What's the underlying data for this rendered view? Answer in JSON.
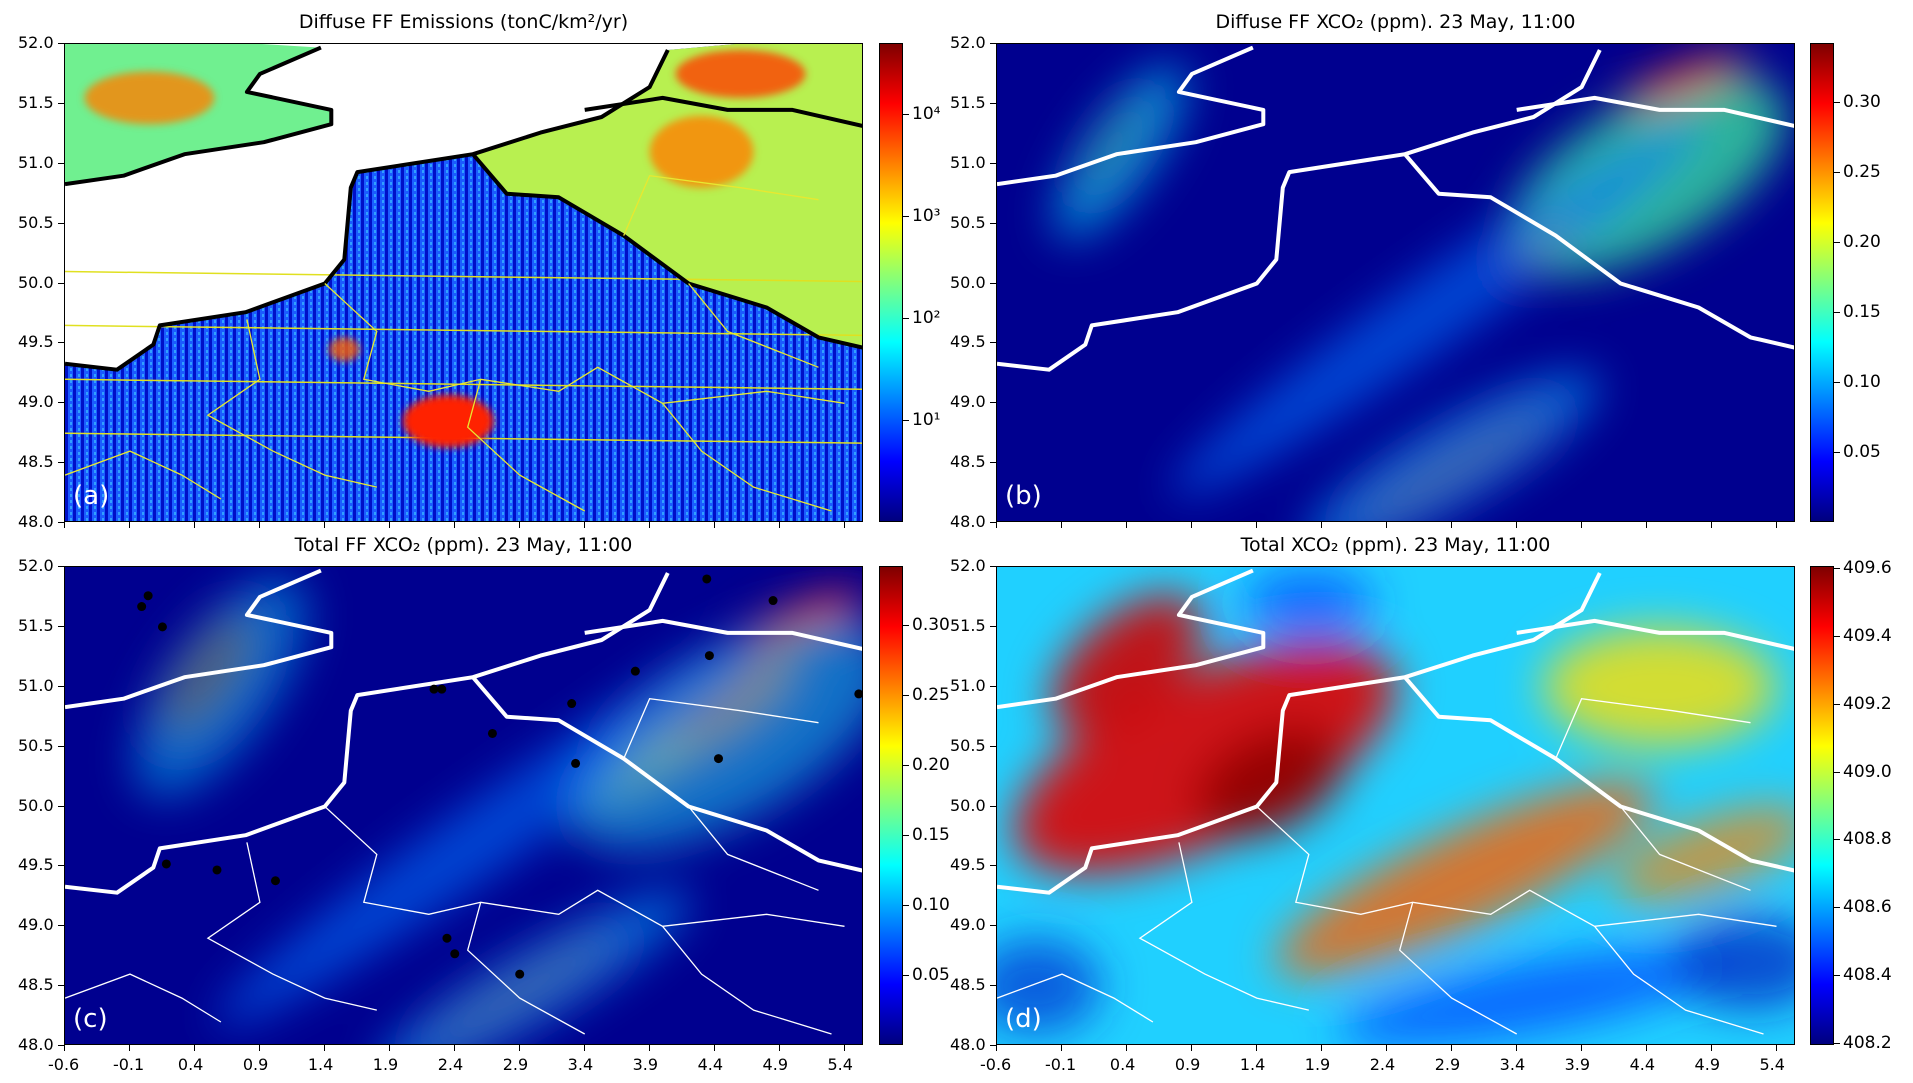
{
  "colors": {
    "jet": [
      "#00007f",
      "#0000ff",
      "#007fff",
      "#00ffff",
      "#7fff7f",
      "#ffff00",
      "#ff7f00",
      "#ff0000",
      "#7f0000"
    ]
  },
  "chart_data": {
    "type": "heatmap",
    "x": {
      "ticks": [
        -0.6,
        -0.1,
        0.4,
        0.9,
        1.4,
        1.9,
        2.4,
        2.9,
        3.4,
        3.9,
        4.4,
        4.9,
        5.4
      ],
      "labels": [
        "-0.6",
        "-0.1",
        "0.4",
        "0.9",
        "1.4",
        "1.9",
        "2.4",
        "2.9",
        "3.4",
        "3.9",
        "4.4",
        "4.9",
        "5.4"
      ],
      "lim": [
        -0.6,
        5.55
      ]
    },
    "y": {
      "ticks": [
        48.0,
        48.5,
        49.0,
        49.5,
        50.0,
        50.5,
        51.0,
        51.5,
        52.0
      ],
      "labels": [
        "48.0",
        "48.5",
        "49.0",
        "49.5",
        "50.0",
        "50.5",
        "51.0",
        "51.5",
        "52.0"
      ],
      "lim": [
        48.0,
        52.0
      ]
    },
    "panels": [
      {
        "id": "a",
        "letter": "(a)",
        "title": "Diffuse FF Emissions (tonC/km²/yr)",
        "colorbar": {
          "scale": "log",
          "lim": [
            1,
            50000
          ],
          "ticks": [
            10,
            100,
            1000,
            10000
          ],
          "labels": [
            "10¹",
            "10²",
            "10³",
            "10⁴"
          ]
        }
      },
      {
        "id": "b",
        "letter": "(b)",
        "title": "Diffuse FF XCO₂ (ppm). 23 May, 11:00",
        "colorbar": {
          "scale": "linear",
          "lim": [
            0,
            0.342
          ],
          "ticks": [
            0.05,
            0.1,
            0.15,
            0.2,
            0.25,
            0.3
          ],
          "labels": [
            "0.05",
            "0.10",
            "0.15",
            "0.20",
            "0.25",
            "0.30"
          ]
        }
      },
      {
        "id": "c",
        "letter": "(c)",
        "title": "Total FF XCO₂ (ppm). 23 May, 11:00",
        "colorbar": {
          "scale": "linear",
          "lim": [
            0,
            0.342
          ],
          "ticks": [
            0.05,
            0.1,
            0.15,
            0.2,
            0.25,
            0.3
          ],
          "labels": [
            "0.05",
            "0.10",
            "0.15",
            "0.20",
            "0.25",
            "0.30"
          ]
        },
        "point_sources": [
          [
            0.04,
            51.76
          ],
          [
            -0.01,
            51.67
          ],
          [
            0.15,
            51.5
          ],
          [
            2.24,
            50.98
          ],
          [
            2.3,
            50.98
          ],
          [
            2.69,
            50.61
          ],
          [
            3.3,
            50.86
          ],
          [
            3.33,
            50.36
          ],
          [
            3.79,
            51.13
          ],
          [
            4.34,
            51.9
          ],
          [
            4.36,
            51.26
          ],
          [
            4.43,
            50.4
          ],
          [
            4.85,
            51.72
          ],
          [
            5.51,
            50.94
          ],
          [
            0.18,
            49.52
          ],
          [
            0.57,
            49.47
          ],
          [
            1.02,
            49.38
          ],
          [
            2.34,
            48.9
          ],
          [
            2.4,
            48.77
          ],
          [
            2.9,
            48.6
          ]
        ]
      },
      {
        "id": "d",
        "letter": "(d)",
        "title": "Total XCO₂ (ppm). 23 May, 11:00",
        "colorbar": {
          "scale": "linear",
          "lim": [
            408.193,
            409.607
          ],
          "ticks": [
            408.2,
            408.4,
            408.6,
            408.8,
            409.0,
            409.2,
            409.4,
            409.6
          ],
          "labels": [
            "408.2",
            "408.4",
            "408.6",
            "408.8",
            "409.0",
            "409.2",
            "409.4",
            "409.6"
          ]
        }
      }
    ]
  }
}
